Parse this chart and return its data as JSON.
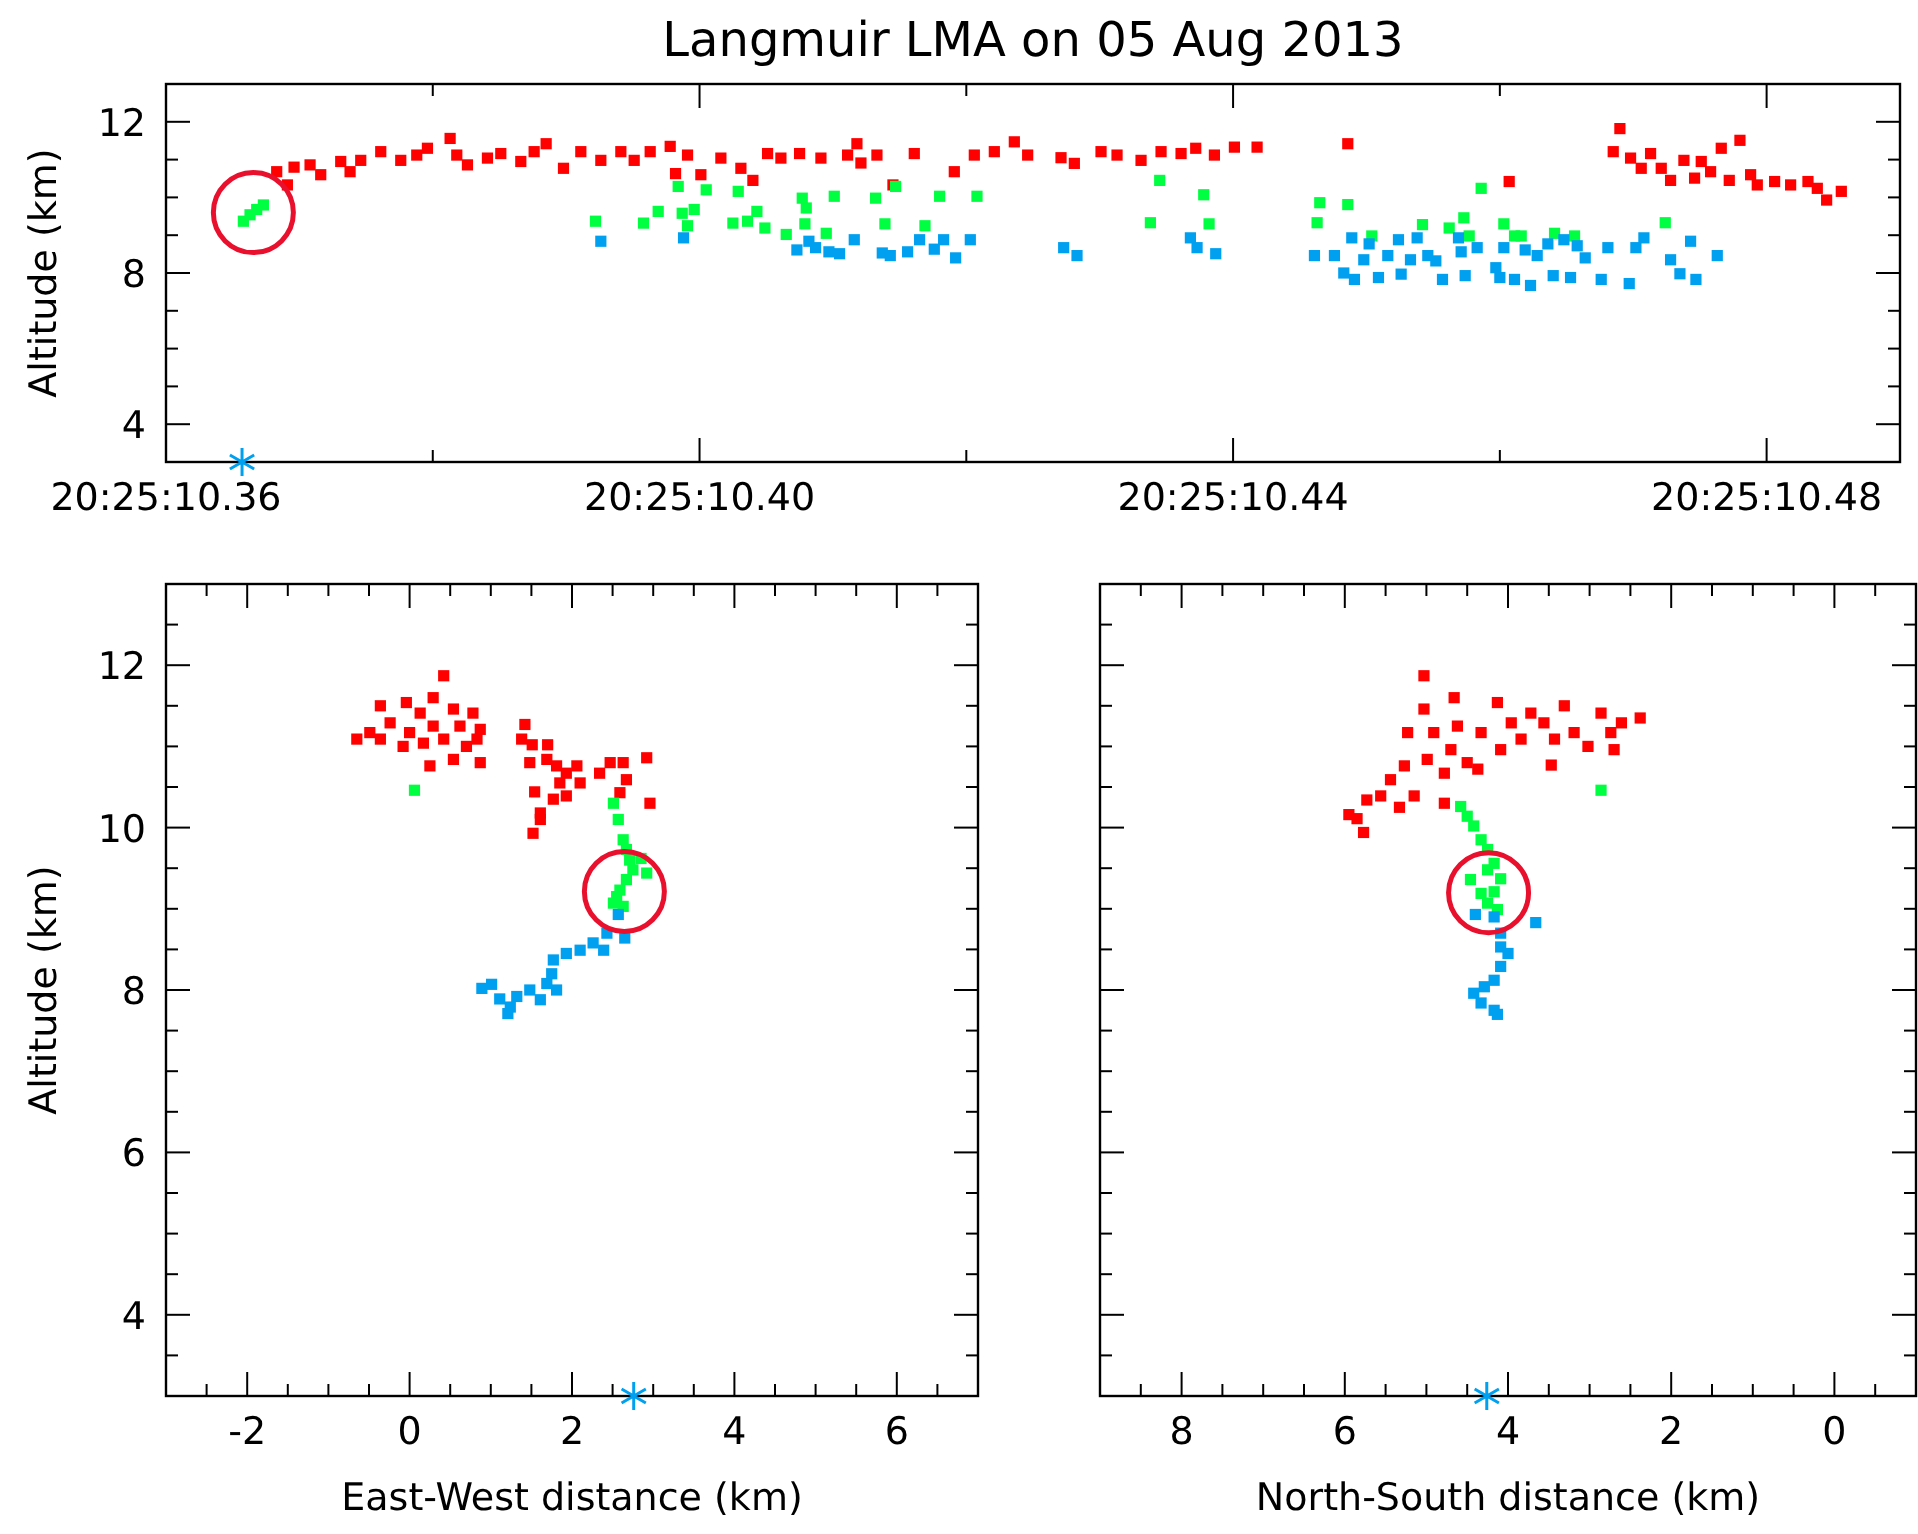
{
  "chart_data": [
    {
      "type": "scatter",
      "title": "Langmuir LMA on 05 Aug 2013",
      "ylabel": "Altitude (km)",
      "marker": "square",
      "grid": false,
      "xlim": [
        "2013-08-05T20:25:10.36",
        "2013-08-05T20:25:10.49"
      ],
      "ylim": [
        3,
        13
      ],
      "xticks": [
        {
          "value": "2013-08-05T20:25:10.36",
          "label": "20:25:10.36"
        },
        {
          "value": "2013-08-05T20:25:10.38",
          "label": null
        },
        {
          "value": "2013-08-05T20:25:10.40",
          "label": "20:25:10.40"
        },
        {
          "value": "2013-08-05T20:25:10.42",
          "label": null
        },
        {
          "value": "2013-08-05T20:25:10.44",
          "label": "20:25:10.44"
        },
        {
          "value": "2013-08-05T20:25:10.46",
          "label": null
        },
        {
          "value": "2013-08-05T20:25:10.48",
          "label": "20:25:10.48"
        }
      ],
      "yticks": [
        4,
        {
          "value": 5,
          "label": null
        },
        {
          "value": 6,
          "label": null
        },
        {
          "value": 7,
          "label": null
        },
        8,
        {
          "value": 9,
          "label": null
        },
        {
          "value": 10,
          "label": null
        },
        {
          "value": 11,
          "label": null
        },
        12,
        {
          "value": 13,
          "label": null
        }
      ],
      "series": [
        {
          "color": "#ff0000",
          "x": [
            "2013-08-05T20:25:10.3683",
            "2013-08-05T20:25:10.3691",
            "2013-08-05T20:25:10.3696",
            "2013-08-05T20:25:10.3708",
            "2013-08-05T20:25:10.3716",
            "2013-08-05T20:25:10.3731",
            "2013-08-05T20:25:10.3738",
            "2013-08-05T20:25:10.3746",
            "2013-08-05T20:25:10.3761",
            "2013-08-05T20:25:10.3776",
            "2013-08-05T20:25:10.3788",
            "2013-08-05T20:25:10.3796",
            "2013-08-05T20:25:10.3813",
            "2013-08-05T20:25:10.3818",
            "2013-08-05T20:25:10.3826",
            "2013-08-05T20:25:10.3841",
            "2013-08-05T20:25:10.3851",
            "2013-08-05T20:25:10.3866",
            "2013-08-05T20:25:10.3876",
            "2013-08-05T20:25:10.3885",
            "2013-08-05T20:25:10.3898",
            "2013-08-05T20:25:10.3911",
            "2013-08-05T20:25:10.3926",
            "2013-08-05T20:25:10.3941",
            "2013-08-05T20:25:10.3951",
            "2013-08-05T20:25:10.3963",
            "2013-08-05T20:25:10.3978",
            "2013-08-05T20:25:10.3982",
            "2013-08-05T20:25:10.3991",
            "2013-08-05T20:25:10.4001",
            "2013-08-05T20:25:10.4016",
            "2013-08-05T20:25:10.4031",
            "2013-08-05T20:25:10.4040",
            "2013-08-05T20:25:10.4051",
            "2013-08-05T20:25:10.4061",
            "2013-08-05T20:25:10.4075",
            "2013-08-05T20:25:10.4091",
            "2013-08-05T20:25:10.4111",
            "2013-08-05T20:25:10.4118",
            "2013-08-05T20:25:10.4121",
            "2013-08-05T20:25:10.4133",
            "2013-08-05T20:25:10.4145",
            "2013-08-05T20:25:10.4161",
            "2013-08-05T20:25:10.4191",
            "2013-08-05T20:25:10.4206",
            "2013-08-05T20:25:10.4221",
            "2013-08-05T20:25:10.4236",
            "2013-08-05T20:25:10.4246",
            "2013-08-05T20:25:10.4271",
            "2013-08-05T20:25:10.4281",
            "2013-08-05T20:25:10.4301",
            "2013-08-05T20:25:10.4313",
            "2013-08-05T20:25:10.4331",
            "2013-08-05T20:25:10.4346",
            "2013-08-05T20:25:10.4361",
            "2013-08-05T20:25:10.4372",
            "2013-08-05T20:25:10.4386",
            "2013-08-05T20:25:10.4401",
            "2013-08-05T20:25:10.4418",
            "2013-08-05T20:25:10.4486",
            "2013-08-05T20:25:10.4607",
            "2013-08-05T20:25:10.4690",
            "2013-08-05T20:25:10.4685",
            "2013-08-05T20:25:10.4698",
            "2013-08-05T20:25:10.4706",
            "2013-08-05T20:25:10.4713",
            "2013-08-05T20:25:10.4721",
            "2013-08-05T20:25:10.4728",
            "2013-08-05T20:25:10.4738",
            "2013-08-05T20:25:10.4746",
            "2013-08-05T20:25:10.4751",
            "2013-08-05T20:25:10.4758",
            "2013-08-05T20:25:10.4766",
            "2013-08-05T20:25:10.4772",
            "2013-08-05T20:25:10.4780",
            "2013-08-05T20:25:10.4788",
            "2013-08-05T20:25:10.4793",
            "2013-08-05T20:25:10.4806",
            "2013-08-05T20:25:10.4818",
            "2013-08-05T20:25:10.4831",
            "2013-08-05T20:25:10.4838",
            "2013-08-05T20:25:10.4845",
            "2013-08-05T20:25:10.4856"
          ],
          "values": [
            10.68,
            10.33,
            10.8,
            10.86,
            10.6,
            10.95,
            10.68,
            10.98,
            11.21,
            10.98,
            11.12,
            11.3,
            11.56,
            11.12,
            10.86,
            11.04,
            11.16,
            10.95,
            11.21,
            11.42,
            10.77,
            11.21,
            10.98,
            11.21,
            10.98,
            11.21,
            11.35,
            10.63,
            11.12,
            10.6,
            11.04,
            10.77,
            10.45,
            11.16,
            11.04,
            11.16,
            11.04,
            11.12,
            11.42,
            10.91,
            11.12,
            10.33,
            11.16,
            10.68,
            11.12,
            11.21,
            11.47,
            11.12,
            11.05,
            10.9,
            11.21,
            11.12,
            10.98,
            11.21,
            11.16,
            11.3,
            11.12,
            11.33,
            11.33,
            11.42,
            10.42,
            11.82,
            11.21,
            11.04,
            10.77,
            11.16,
            10.77,
            10.45,
            10.98,
            10.51,
            10.95,
            10.68,
            11.3,
            10.45,
            11.51,
            10.6,
            10.33,
            10.42,
            10.33,
            10.42,
            10.24,
            9.93,
            10.16
          ]
        },
        {
          "color": "#00ff40",
          "x": [
            "2013-08-05T20:25:10.3658",
            "2013-08-05T20:25:10.3663",
            "2013-08-05T20:25:10.3668",
            "2013-08-05T20:25:10.3673",
            "2013-08-05T20:25:10.3922",
            "2013-08-05T20:25:10.3958",
            "2013-08-05T20:25:10.3969",
            "2013-08-05T20:25:10.3984",
            "2013-08-05T20:25:10.3987",
            "2013-08-05T20:25:10.3991",
            "2013-08-05T20:25:10.3996",
            "2013-08-05T20:25:10.4005",
            "2013-08-05T20:25:10.4025",
            "2013-08-05T20:25:10.4029",
            "2013-08-05T20:25:10.4036",
            "2013-08-05T20:25:10.4043",
            "2013-08-05T20:25:10.4049",
            "2013-08-05T20:25:10.4065",
            "2013-08-05T20:25:10.4077",
            "2013-08-05T20:25:10.4079",
            "2013-08-05T20:25:10.4080",
            "2013-08-05T20:25:10.4095",
            "2013-08-05T20:25:10.4101",
            "2013-08-05T20:25:10.4132",
            "2013-08-05T20:25:10.4139",
            "2013-08-05T20:25:10.4147",
            "2013-08-05T20:25:10.4169",
            "2013-08-05T20:25:10.4180",
            "2013-08-05T20:25:10.4208",
            "2013-08-05T20:25:10.4345",
            "2013-08-05T20:25:10.4378",
            "2013-08-05T20:25:10.4338",
            "2013-08-05T20:25:10.4382",
            "2013-08-05T20:25:10.4465",
            "2013-08-05T20:25:10.4463",
            "2013-08-05T20:25:10.4486",
            "2013-08-05T20:25:10.4504",
            "2013-08-05T20:25:10.4542",
            "2013-08-05T20:25:10.4562",
            "2013-08-05T20:25:10.4573",
            "2013-08-05T20:25:10.4577",
            "2013-08-05T20:25:10.4586",
            "2013-08-05T20:25:10.4603",
            "2013-08-05T20:25:10.4611",
            "2013-08-05T20:25:10.4616",
            "2013-08-05T20:25:10.4641",
            "2013-08-05T20:25:10.4656",
            "2013-08-05T20:25:10.4724"
          ],
          "values": [
            9.37,
            9.54,
            9.68,
            9.8,
            9.37,
            9.32,
            9.63,
            10.29,
            9.58,
            9.25,
            9.68,
            10.2,
            9.32,
            10.16,
            9.37,
            9.63,
            9.19,
            9.02,
            9.98,
            9.3,
            9.72,
            9.05,
            10.03,
            9.98,
            9.3,
            10.29,
            9.25,
            10.03,
            10.03,
            10.45,
            10.07,
            9.33,
            9.3,
            9.86,
            9.33,
            9.81,
            8.98,
            9.28,
            9.19,
            9.46,
            8.98,
            10.24,
            9.3,
            8.98,
            8.98,
            9.05,
            8.98,
            9.33
          ]
        },
        {
          "color": "#00a0f0",
          "x": [
            "2013-08-05T20:25:10.3926",
            "2013-08-05T20:25:10.3988",
            "2013-08-05T20:25:10.4073",
            "2013-08-05T20:25:10.4082",
            "2013-08-05T20:25:10.4087",
            "2013-08-05T20:25:10.4097",
            "2013-08-05T20:25:10.4105",
            "2013-08-05T20:25:10.4116",
            "2013-08-05T20:25:10.4137",
            "2013-08-05T20:25:10.4143",
            "2013-08-05T20:25:10.4156",
            "2013-08-05T20:25:10.4165",
            "2013-08-05T20:25:10.4176",
            "2013-08-05T20:25:10.4183",
            "2013-08-05T20:25:10.4192",
            "2013-08-05T20:25:10.4203",
            "2013-08-05T20:25:10.4273",
            "2013-08-05T20:25:10.4283",
            "2013-08-05T20:25:10.4368",
            "2013-08-05T20:25:10.4373",
            "2013-08-05T20:25:10.4387",
            "2013-08-05T20:25:10.4461",
            "2013-08-05T20:25:10.4476",
            "2013-08-05T20:25:10.4483",
            "2013-08-05T20:25:10.4489",
            "2013-08-05T20:25:10.4491",
            "2013-08-05T20:25:10.4498",
            "2013-08-05T20:25:10.4502",
            "2013-08-05T20:25:10.4509",
            "2013-08-05T20:25:10.4516",
            "2013-08-05T20:25:10.4524",
            "2013-08-05T20:25:10.4526",
            "2013-08-05T20:25:10.4533",
            "2013-08-05T20:25:10.4538",
            "2013-08-05T20:25:10.4546",
            "2013-08-05T20:25:10.4552",
            "2013-08-05T20:25:10.4557",
            "2013-08-05T20:25:10.4569",
            "2013-08-05T20:25:10.4571",
            "2013-08-05T20:25:10.4574",
            "2013-08-05T20:25:10.4583",
            "2013-08-05T20:25:10.4597",
            "2013-08-05T20:25:10.4600",
            "2013-08-05T20:25:10.4603",
            "2013-08-05T20:25:10.4611",
            "2013-08-05T20:25:10.4619",
            "2013-08-05T20:25:10.4623",
            "2013-08-05T20:25:10.4628",
            "2013-08-05T20:25:10.4636",
            "2013-08-05T20:25:10.4640",
            "2013-08-05T20:25:10.4648",
            "2013-08-05T20:25:10.4653",
            "2013-08-05T20:25:10.4658",
            "2013-08-05T20:25:10.4664",
            "2013-08-05T20:25:10.4676",
            "2013-08-05T20:25:10.4681",
            "2013-08-05T20:25:10.4697",
            "2013-08-05T20:25:10.4702",
            "2013-08-05T20:25:10.4708",
            "2013-08-05T20:25:10.4728",
            "2013-08-05T20:25:10.4735",
            "2013-08-05T20:25:10.4743",
            "2013-08-05T20:25:10.4747",
            "2013-08-05T20:25:10.4763"
          ],
          "values": [
            8.84,
            8.93,
            8.61,
            8.84,
            8.67,
            8.56,
            8.51,
            8.88,
            8.53,
            8.46,
            8.56,
            8.88,
            8.63,
            8.88,
            8.4,
            8.88,
            8.67,
            8.46,
            8.93,
            8.67,
            8.51,
            8.46,
            8.46,
            8.0,
            8.93,
            7.83,
            8.35,
            8.77,
            7.88,
            8.46,
            8.88,
            7.97,
            8.35,
            8.93,
            8.46,
            8.32,
            7.83,
            8.93,
            8.56,
            7.93,
            8.67,
            8.14,
            7.88,
            8.67,
            7.83,
            8.61,
            7.67,
            8.46,
            8.77,
            7.93,
            8.88,
            7.88,
            8.72,
            8.4,
            7.83,
            8.67,
            7.72,
            8.67,
            8.93,
            8.35,
            7.98,
            8.84,
            7.83,
            8.46
          ]
        },
        {
          "type": "scatter",
          "marker": "cross",
          "color": "#00a0f0",
          "x": [
            "2013-08-05T20:25:10.3657"
          ],
          "values": [
            3
          ]
        }
      ]
    },
    {
      "type": "scatter",
      "xlabel": "East-West distance (km)",
      "ylabel": "Altitude (km)",
      "marker": "square",
      "grid": false,
      "xlim": [
        -3,
        7
      ],
      "ylim": [
        3,
        13
      ],
      "xticks": [
        {
          "value": -2.5,
          "label": null
        },
        -2,
        {
          "value": -1.5,
          "label": null
        },
        {
          "value": -1,
          "label": null
        },
        {
          "value": -0.5,
          "label": null
        },
        0,
        {
          "value": 0.5,
          "label": null
        },
        {
          "value": 1,
          "label": null
        },
        {
          "value": 1.5,
          "label": null
        },
        2,
        {
          "value": 2.5,
          "label": null
        },
        {
          "value": 3,
          "label": null
        },
        {
          "value": 3.5,
          "label": null
        },
        4,
        {
          "value": 4.5,
          "label": null
        },
        {
          "value": 5,
          "label": null
        },
        {
          "value": 5.5,
          "label": null
        },
        6,
        {
          "value": 6.5,
          "label": null
        }
      ],
      "yticks": [
        {
          "value": 3.5,
          "label": null
        },
        4,
        {
          "value": 4.5,
          "label": null
        },
        {
          "value": 5,
          "label": null
        },
        {
          "value": 5.5,
          "label": null
        },
        6,
        {
          "value": 6.5,
          "label": null
        },
        {
          "value": 7,
          "label": null
        },
        {
          "value": 7.5,
          "label": null
        },
        8,
        {
          "value": 8.5,
          "label": null
        },
        {
          "value": 9,
          "label": null
        },
        {
          "value": 9.5,
          "label": null
        },
        10,
        {
          "value": 10.5,
          "label": null
        },
        {
          "value": 11,
          "label": null
        },
        {
          "value": 11.5,
          "label": null
        },
        12,
        {
          "value": 12.5,
          "label": null
        }
      ],
      "series": [
        {
          "color": "#ff0000",
          "x": [
            -0.65,
            -0.49,
            -0.36,
            -0.24,
            -0.04,
            0.0,
            0.13,
            0.17,
            0.29,
            0.29,
            0.42,
            0.42,
            0.54,
            0.54,
            0.62,
            0.7,
            0.78,
            0.83,
            0.87,
            0.87,
            0.25,
            -0.08,
            -0.36,
            1.42,
            1.38,
            1.51,
            1.48,
            1.7,
            1.69,
            1.81,
            1.93,
            2.06,
            2.1,
            1.85,
            1.77,
            1.61,
            1.54,
            1.61,
            1.52,
            1.93,
            2.34,
            2.47,
            2.63,
            2.67,
            2.59,
            2.92,
            2.96
          ],
          "values": [
            11.09,
            11.17,
            11.5,
            11.29,
            11.54,
            11.17,
            11.41,
            11.04,
            11.6,
            11.25,
            11.87,
            11.09,
            11.46,
            10.84,
            11.25,
            11.0,
            11.41,
            11.09,
            11.21,
            10.8,
            10.76,
            11.0,
            11.09,
            11.27,
            11.09,
            11.02,
            10.8,
            11.02,
            10.84,
            10.76,
            10.67,
            10.76,
            10.55,
            10.55,
            10.35,
            10.18,
            10.44,
            10.1,
            9.93,
            10.39,
            10.67,
            10.8,
            10.8,
            10.59,
            10.43,
            10.86,
            10.3
          ]
        },
        {
          "color": "#00ff40",
          "x": [
            0.06,
            2.51,
            2.57,
            2.63,
            2.67,
            2.71,
            2.85,
            2.75,
            2.92,
            2.67,
            2.59,
            2.55,
            2.51,
            2.63
          ],
          "values": [
            10.46,
            10.3,
            10.1,
            9.85,
            9.73,
            9.6,
            9.62,
            9.48,
            9.44,
            9.36,
            9.23,
            9.15,
            9.07,
            9.03
          ]
        },
        {
          "color": "#00a0f0",
          "x": [
            2.57,
            2.65,
            2.43,
            2.26,
            2.1,
            1.93,
            1.77,
            1.75,
            1.69,
            1.81,
            1.48,
            1.32,
            1.24,
            1.21,
            1.11,
            1.01,
            0.89,
            1.61,
            2.39
          ],
          "values": [
            8.93,
            8.64,
            8.7,
            8.58,
            8.49,
            8.45,
            8.37,
            8.2,
            8.08,
            8.0,
            8.0,
            7.92,
            7.79,
            7.71,
            7.89,
            8.07,
            8.02,
            7.88,
            8.49
          ]
        },
        {
          "type": "scatter",
          "marker": "cross",
          "color": "#00a0f0",
          "x": [
            2.76
          ],
          "values": [
            3
          ]
        }
      ]
    },
    {
      "type": "scatter",
      "xlabel": "North-South distance (km)",
      "marker": "square",
      "grid": false,
      "tick_labels": "x",
      "xlim": [
        9,
        -1
      ],
      "ylim": [
        3,
        13
      ],
      "xticks": [
        {
          "value": 8.5,
          "label": null
        },
        8,
        {
          "value": 7.5,
          "label": null
        },
        {
          "value": 7,
          "label": null
        },
        {
          "value": 6.5,
          "label": null
        },
        6,
        {
          "value": 5.5,
          "label": null
        },
        {
          "value": 5,
          "label": null
        },
        {
          "value": 4.5,
          "label": null
        },
        4,
        {
          "value": 3.5,
          "label": null
        },
        {
          "value": 3,
          "label": null
        },
        {
          "value": 2.5,
          "label": null
        },
        2,
        {
          "value": 1.5,
          "label": null
        },
        {
          "value": 1,
          "label": null
        },
        {
          "value": 0.5,
          "label": null
        },
        0,
        {
          "value": -0.5,
          "label": null
        }
      ],
      "yticks": [
        {
          "value": 3.5,
          "label": null
        },
        4,
        {
          "value": 4.5,
          "label": null
        },
        {
          "value": 5,
          "label": null
        },
        {
          "value": 5.5,
          "label": null
        },
        6,
        {
          "value": 6.5,
          "label": null
        },
        {
          "value": 7,
          "label": null
        },
        {
          "value": 7.5,
          "label": null
        },
        8,
        {
          "value": 8.5,
          "label": null
        },
        {
          "value": 9,
          "label": null
        },
        {
          "value": 9.5,
          "label": null
        },
        10,
        {
          "value": 10.5,
          "label": null
        },
        {
          "value": 11,
          "label": null
        },
        {
          "value": 11.5,
          "label": null
        },
        12,
        {
          "value": 12.5,
          "label": null
        }
      ],
      "series": [
        {
          "color": "#ff0000",
          "x": [
            5.95,
            5.85,
            5.77,
            5.73,
            5.56,
            5.44,
            5.33,
            5.27,
            5.23,
            5.15,
            5.03,
            5.03,
            4.99,
            4.91,
            4.78,
            4.78,
            4.7,
            4.66,
            4.62,
            4.5,
            4.37,
            4.33,
            4.13,
            4.09,
            3.96,
            3.84,
            3.72,
            3.56,
            3.47,
            3.43,
            3.31,
            3.19,
            3.02,
            2.86,
            2.74,
            2.7,
            2.61,
            2.38
          ],
          "values": [
            10.16,
            10.11,
            9.94,
            10.34,
            10.39,
            10.59,
            10.25,
            10.76,
            11.17,
            10.39,
            11.46,
            11.87,
            10.84,
            11.17,
            10.3,
            10.67,
            10.96,
            11.6,
            11.25,
            10.8,
            10.72,
            11.17,
            11.54,
            10.96,
            11.29,
            11.09,
            11.41,
            11.29,
            10.77,
            11.09,
            11.5,
            11.17,
            11.0,
            11.41,
            11.17,
            10.96,
            11.29,
            11.35
          ]
        },
        {
          "color": "#00ff40",
          "x": [
            2.86,
            4.58,
            4.5,
            4.42,
            4.33,
            4.25,
            4.17,
            4.25,
            4.46,
            4.09,
            4.33,
            4.17,
            4.25,
            4.13
          ],
          "values": [
            10.46,
            10.26,
            10.14,
            10.02,
            9.85,
            9.73,
            9.56,
            9.48,
            9.36,
            9.37,
            9.19,
            9.21,
            9.07,
            8.99
          ]
        },
        {
          "color": "#00a0f0",
          "x": [
            4.4,
            4.17,
            3.66,
            4.09,
            4.09,
            4.0,
            4.09,
            4.17,
            4.29,
            4.42,
            4.33,
            4.17,
            4.13
          ],
          "values": [
            8.93,
            8.9,
            8.83,
            8.7,
            8.53,
            8.45,
            8.29,
            8.12,
            8.04,
            7.96,
            7.84,
            7.75,
            7.7
          ]
        },
        {
          "type": "scatter",
          "marker": "cross",
          "color": "#00a0f0",
          "x": [
            4.26
          ],
          "values": [
            3
          ]
        }
      ]
    }
  ]
}
